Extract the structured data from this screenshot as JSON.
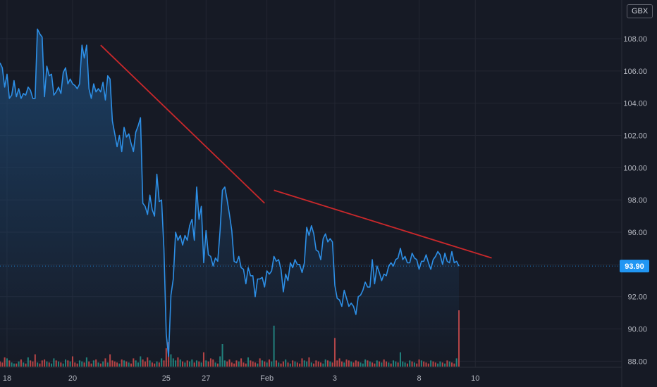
{
  "currency": "GBX",
  "colors": {
    "background": "#161a25",
    "grid": "#232632",
    "price_line": "#2d8fe6",
    "area_top": "#1e4c7a",
    "trendline": "#c9282b",
    "volume_up": "#26a69a",
    "volume_down": "#ef5350",
    "last_price_badge": "#2196f3",
    "axis_text": "#b2b5be"
  },
  "chart_data": {
    "type": "area",
    "title": "",
    "xlabel": "",
    "ylabel": "",
    "ylim": [
      86.4,
      110.4
    ],
    "y_ticks": [
      "88.00",
      "90.00",
      "92.00",
      "94.00",
      "96.00",
      "98.00",
      "100.00",
      "102.00",
      "104.00",
      "106.00",
      "108.00"
    ],
    "x_ticks": [
      "18",
      "20",
      "25",
      "27",
      "Feb",
      "3",
      "8",
      "10"
    ],
    "last_price": {
      "label": "93.90",
      "value": 93.9
    },
    "series": [
      {
        "values": [
          106.5,
          106.2,
          105.0,
          105.8,
          104.3,
          104.5,
          105.4,
          104.4,
          104.9,
          104.3,
          104.6,
          104.5,
          105.0,
          104.8,
          104.3,
          104.3,
          108.6,
          108.3,
          108.1,
          104.4,
          106.3,
          105.7,
          105.8,
          104.5,
          104.7,
          105.0,
          104.6,
          105.9,
          106.2,
          105.2,
          105.5,
          105.2,
          105.1,
          104.9,
          105.2,
          107.6,
          106.8,
          107.6,
          104.9,
          104.3,
          105.2,
          104.7,
          104.9,
          104.7,
          105.3,
          104.2,
          105.7,
          105.5,
          102.9,
          102.1,
          101.3,
          102.0,
          101.0,
          102.5,
          101.9,
          102.1,
          101.5,
          101.0,
          102.2,
          102.6,
          103.1,
          97.8,
          97.6,
          97.1,
          98.3,
          97.4,
          97.0,
          99.6,
          97.9,
          98.0,
          95.0,
          89.7,
          88.3,
          92.1,
          93.1,
          96.0,
          95.5,
          95.8,
          95.2,
          95.8,
          95.5,
          96.4,
          96.8,
          95.5,
          98.8,
          96.8,
          97.6,
          94.1,
          96.1,
          94.6,
          94.5,
          93.9,
          94.4,
          94.2,
          96.1,
          98.6,
          98.8,
          98.0,
          97.1,
          96.1,
          94.2,
          94.1,
          94.5,
          93.8,
          93.7,
          92.8,
          93.8,
          93.3,
          93.3,
          92.0,
          93.1,
          93.1,
          93.2,
          92.6,
          93.6,
          93.4,
          93.6,
          94.5,
          94.2,
          94.3,
          93.7,
          92.3,
          93.4,
          93.0,
          94.1,
          93.8,
          94.3,
          94.0,
          94.0,
          93.5,
          94.1,
          96.3,
          95.8,
          96.4,
          95.9,
          94.9,
          94.8,
          94.3,
          95.6,
          95.9,
          95.4,
          95.6,
          95.4,
          92.7,
          91.9,
          91.8,
          91.4,
          92.4,
          91.9,
          91.4,
          91.6,
          91.4,
          90.9,
          92.0,
          92.1,
          92.4,
          92.9,
          92.6,
          92.6,
          94.3,
          92.8,
          93.9,
          93.5,
          93.0,
          93.4,
          93.3,
          93.9,
          94.1,
          93.9,
          94.3,
          94.4,
          95.0,
          94.3,
          94.5,
          94.1,
          94.1,
          94.7,
          94.4,
          94.3,
          93.7,
          94.2,
          94.2,
          94.6,
          94.1,
          93.7,
          94.3,
          94.5,
          94.8,
          94.6,
          94.0,
          94.7,
          94.2,
          94.1,
          94.8,
          94.1,
          94.2,
          93.9
        ]
      }
    ],
    "volume": [
      5,
      4,
      9,
      8,
      6,
      4,
      3,
      3,
      5,
      7,
      4,
      3,
      9,
      6,
      5,
      12,
      4,
      3,
      6,
      7,
      5,
      4,
      3,
      8,
      6,
      5,
      4,
      3,
      7,
      6,
      5,
      10,
      4,
      3,
      6,
      5,
      4,
      9,
      5,
      3,
      6,
      7,
      4,
      3,
      5,
      8,
      4,
      12,
      6,
      5,
      4,
      3,
      7,
      6,
      5,
      4,
      3,
      8,
      6,
      4,
      10,
      7,
      5,
      9,
      6,
      4,
      3,
      5,
      4,
      8,
      6,
      18,
      24,
      12,
      8,
      6,
      9,
      7,
      5,
      4,
      6,
      5,
      7,
      4,
      6,
      5,
      4,
      14,
      6,
      5,
      8,
      7,
      4,
      3,
      10,
      22,
      6,
      5,
      7,
      4,
      3,
      6,
      5,
      8,
      4,
      3,
      9,
      6,
      5,
      4,
      3,
      8,
      6,
      5,
      4,
      7,
      5,
      40,
      6,
      4,
      3,
      5,
      7,
      4,
      3,
      6,
      5,
      4,
      3,
      8,
      6,
      5,
      9,
      4,
      3,
      6,
      5,
      4,
      3,
      7,
      6,
      5,
      4,
      28,
      6,
      8,
      5,
      4,
      7,
      6,
      5,
      4,
      6,
      5,
      4,
      3,
      7,
      6,
      5,
      4,
      3,
      6,
      5,
      4,
      7,
      5,
      4,
      3,
      6,
      5,
      4,
      14,
      5,
      4,
      3,
      6,
      5,
      4,
      3,
      7,
      6,
      5,
      4,
      3,
      6,
      5,
      4,
      3,
      5,
      4,
      3,
      6,
      5,
      4,
      3,
      8,
      55
    ],
    "volume_up": [
      0,
      0,
      0,
      1,
      0,
      1,
      1,
      0,
      1,
      0,
      1,
      0,
      1,
      0,
      0,
      0,
      1,
      0,
      0,
      0,
      1,
      0,
      1,
      1,
      0,
      1,
      0,
      1,
      1,
      0,
      1,
      0,
      0,
      0,
      1,
      1,
      0,
      1,
      0,
      0,
      1,
      0,
      1,
      0,
      1,
      0,
      1,
      0,
      0,
      0,
      0,
      1,
      0,
      1,
      0,
      1,
      0,
      0,
      1,
      1,
      1,
      0,
      0,
      0,
      1,
      0,
      0,
      1,
      0,
      1,
      0,
      0,
      0,
      1,
      1,
      1,
      0,
      1,
      0,
      1,
      0,
      1,
      1,
      0,
      1,
      0,
      1,
      0,
      1,
      0,
      0,
      0,
      1,
      0,
      1,
      1,
      1,
      0,
      0,
      0,
      0,
      0,
      1,
      0,
      0,
      0,
      1,
      0,
      0,
      0,
      1,
      0,
      1,
      0,
      1,
      0,
      1,
      1,
      0,
      1,
      0,
      0,
      1,
      0,
      1,
      0,
      1,
      0,
      0,
      0,
      1,
      1,
      0,
      1,
      0,
      0,
      0,
      0,
      1,
      1,
      0,
      1,
      0,
      0,
      0,
      0,
      0,
      1,
      0,
      0,
      1,
      0,
      0,
      0,
      1,
      1,
      1,
      0,
      1,
      0,
      0,
      1,
      0,
      1,
      0,
      0,
      1,
      0,
      1,
      1,
      0,
      1,
      1,
      1,
      0,
      1,
      0,
      1,
      0,
      0,
      1,
      0,
      0,
      0,
      1,
      0,
      0,
      1,
      1,
      0,
      1,
      0,
      1,
      0,
      0,
      1,
      0,
      1,
      0,
      0,
      1,
      0,
      0
    ],
    "x_range": [
      0,
      199
    ]
  }
}
